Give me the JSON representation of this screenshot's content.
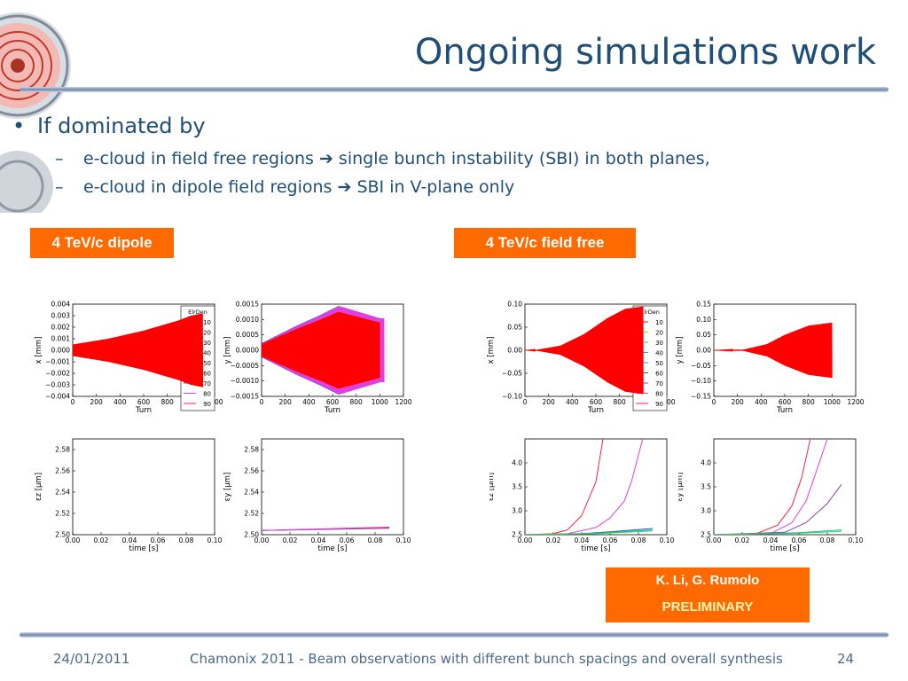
{
  "slide": {
    "title": "Ongoing simulations work",
    "bullet": "If dominated by",
    "sub_bullets": [
      {
        "before": "e-cloud in field free regions ",
        "after": " single bunch instability (SBI) in both planes,"
      },
      {
        "before": "e-cloud in dipole field regions ",
        "after": " SBI in V-plane only"
      }
    ],
    "tag_dipole": "4 TeV/c dipole",
    "tag_field_free": "4 TeV/c field free",
    "credit_authors": "K. Li, G. Rumolo",
    "credit_status": "PRELIMINARY",
    "footer_date": "24/01/2011",
    "footer_text": "Chamonix 2011 -  Beam observations with different bunch spacings and overall synthesis",
    "footer_page": "24",
    "colors": {
      "title": "#1f4e79",
      "accent": "#ff6a00"
    }
  },
  "legend": {
    "title": "ElrDen",
    "entries": [
      "10",
      "20",
      "30",
      "40",
      "50",
      "60",
      "70",
      "80",
      "90"
    ],
    "colors": [
      "#ff0000",
      "#b0d000",
      "#40d040",
      "#00c0c0",
      "#00a0ff",
      "#3050d0",
      "#8040c0",
      "#e040e0",
      "#ff2040"
    ]
  },
  "chart_data": [
    {
      "id": "dipole_x",
      "type": "line",
      "group": "4 TeV/c dipole",
      "xlabel": "Turn",
      "ylabel": "x [mm]",
      "xlim": [
        0,
        1200
      ],
      "ylim": [
        -0.004,
        0.004
      ],
      "xticks": [
        "0",
        "200",
        "400",
        "600",
        "800",
        "1000",
        "1200"
      ],
      "yticks": [
        "−0.004",
        "−0.003",
        "−0.002",
        "−0.001",
        "0.000",
        "0.001",
        "0.002",
        "0.003",
        "0.004"
      ],
      "legend": true,
      "envelope": {
        "x": [
          0,
          300,
          600,
          900,
          1000,
          1100
        ],
        "amp": [
          0.0005,
          0.001,
          0.0017,
          0.0026,
          0.003,
          0.0032
        ]
      }
    },
    {
      "id": "dipole_y",
      "type": "line",
      "group": "4 TeV/c dipole",
      "xlabel": "Turn",
      "ylabel": "y [mm]",
      "xlim": [
        0,
        1200
      ],
      "ylim": [
        -0.0015,
        0.0015
      ],
      "xticks": [
        "0",
        "200",
        "400",
        "600",
        "800",
        "1000",
        "1200"
      ],
      "yticks": [
        "−0.0015",
        "−0.0010",
        "−0.0005",
        "0.0000",
        "0.0005",
        "0.0010",
        "0.0015"
      ],
      "legend": false,
      "envelope": {
        "x": [
          0,
          150,
          300,
          500,
          650,
          800,
          1000
        ],
        "amp": [
          0.0002,
          0.00045,
          0.0007,
          0.001,
          0.00125,
          0.0011,
          0.0009
        ]
      }
    },
    {
      "id": "free_x",
      "type": "line",
      "group": "4 TeV/c field free",
      "xlabel": "Turn",
      "ylabel": "x [mm]",
      "xlim": [
        0,
        1200
      ],
      "ylim": [
        -0.1,
        0.1
      ],
      "xticks": [
        "0",
        "200",
        "400",
        "600",
        "800",
        "1000",
        "1200"
      ],
      "yticks": [
        "−0.10",
        "−0.05",
        "0.00",
        "0.05",
        "0.10"
      ],
      "legend": true,
      "envelope": {
        "x": [
          0,
          100,
          300,
          500,
          700,
          850,
          1000
        ],
        "amp": [
          0.0,
          0.001,
          0.01,
          0.035,
          0.07,
          0.09,
          0.095
        ]
      }
    },
    {
      "id": "free_y",
      "type": "line",
      "group": "4 TeV/c field free",
      "xlabel": "Turn",
      "ylabel": "y [mm]",
      "xlim": [
        0,
        1200
      ],
      "ylim": [
        -0.15,
        0.15
      ],
      "xticks": [
        "0",
        "200",
        "400",
        "600",
        "800",
        "1000",
        "1200"
      ],
      "yticks": [
        "−0.15",
        "−0.10",
        "−0.05",
        "0.00",
        "0.05",
        "0.10",
        "0.15"
      ],
      "legend": false,
      "envelope": {
        "x": [
          0,
          250,
          450,
          600,
          800,
          1000
        ],
        "amp": [
          0.0,
          0.002,
          0.02,
          0.05,
          0.08,
          0.09
        ]
      }
    },
    {
      "id": "dipole_ez",
      "type": "line",
      "group": "4 TeV/c dipole",
      "xlabel": "time [s]",
      "ylabel": "εz [μm]",
      "xlim": [
        0,
        0.1
      ],
      "ylim": [
        2.5,
        2.59
      ],
      "xticks": [
        "0.00",
        "0.02",
        "0.04",
        "0.06",
        "0.08",
        "0.10"
      ],
      "yticks": [
        "2.50",
        "2.52",
        "2.54",
        "2.56",
        "2.58"
      ],
      "series": []
    },
    {
      "id": "dipole_ey",
      "type": "line",
      "group": "4 TeV/c dipole",
      "xlabel": "time [s]",
      "ylabel": "εy [μm]",
      "xlim": [
        0,
        0.1
      ],
      "ylim": [
        2.5,
        2.59
      ],
      "xticks": [
        "0.00",
        "0.02",
        "0.04",
        "0.06",
        "0.08",
        "0.10"
      ],
      "yticks": [
        "2.50",
        "2.52",
        "2.54",
        "2.56",
        "2.58"
      ],
      "series": [
        {
          "color": "#ff0000",
          "x": [
            0,
            0.09
          ],
          "y": [
            2.504,
            2.507
          ]
        },
        {
          "color": "#3050d0",
          "x": [
            0,
            0.09
          ],
          "y": [
            2.504,
            2.506
          ]
        },
        {
          "color": "#e040e0",
          "x": [
            0,
            0.09
          ],
          "y": [
            2.504,
            2.5065
          ]
        }
      ]
    },
    {
      "id": "free_ez",
      "type": "line",
      "group": "4 TeV/c field free",
      "xlabel": "time [s]",
      "ylabel": "εz [μm]",
      "xlim": [
        0,
        0.1
      ],
      "ylim": [
        2.5,
        4.5
      ],
      "xticks": [
        "0.00",
        "0.02",
        "0.04",
        "0.06",
        "0.08",
        "0.10"
      ],
      "yticks": [
        "2.5",
        "3.0",
        "3.5",
        "4.0"
      ],
      "series": [
        {
          "color": "#ff2040",
          "x": [
            0,
            0.02,
            0.03,
            0.04,
            0.05,
            0.055
          ],
          "y": [
            2.5,
            2.52,
            2.6,
            2.9,
            3.6,
            4.5
          ]
        },
        {
          "color": "#e040e0",
          "x": [
            0,
            0.03,
            0.05,
            0.06,
            0.07,
            0.075,
            0.083
          ],
          "y": [
            2.5,
            2.52,
            2.65,
            2.85,
            3.2,
            3.6,
            4.5
          ]
        },
        {
          "color": "#3050d0",
          "x": [
            0,
            0.04,
            0.06,
            0.09
          ],
          "y": [
            2.5,
            2.52,
            2.56,
            2.63
          ]
        },
        {
          "color": "#00c0c0",
          "x": [
            0,
            0.05,
            0.09
          ],
          "y": [
            2.5,
            2.53,
            2.6
          ]
        },
        {
          "color": "#40d040",
          "x": [
            0,
            0.05,
            0.09
          ],
          "y": [
            2.5,
            2.52,
            2.58
          ]
        }
      ]
    },
    {
      "id": "free_ey",
      "type": "line",
      "group": "4 TeV/c field free",
      "xlabel": "time [s]",
      "ylabel": "εy [μm]",
      "xlim": [
        0,
        0.1
      ],
      "ylim": [
        2.5,
        4.5
      ],
      "xticks": [
        "0.00",
        "0.02",
        "0.04",
        "0.06",
        "0.08",
        "0.10"
      ],
      "yticks": [
        "2.5",
        "3.0",
        "3.5",
        "4.0"
      ],
      "series": [
        {
          "color": "#ff2040",
          "x": [
            0,
            0.03,
            0.045,
            0.055,
            0.062,
            0.068
          ],
          "y": [
            2.5,
            2.52,
            2.7,
            3.1,
            3.7,
            4.5
          ]
        },
        {
          "color": "#e040e0",
          "x": [
            0,
            0.04,
            0.055,
            0.065,
            0.072,
            0.08
          ],
          "y": [
            2.5,
            2.52,
            2.75,
            3.2,
            3.8,
            4.5
          ]
        },
        {
          "color": "#8040c0",
          "x": [
            0,
            0.05,
            0.065,
            0.08,
            0.09
          ],
          "y": [
            2.5,
            2.55,
            2.75,
            3.15,
            3.55
          ]
        },
        {
          "color": "#00c0c0",
          "x": [
            0,
            0.06,
            0.09
          ],
          "y": [
            2.5,
            2.54,
            2.6
          ]
        },
        {
          "color": "#40d040",
          "x": [
            0,
            0.06,
            0.09
          ],
          "y": [
            2.5,
            2.53,
            2.57
          ]
        }
      ]
    }
  ]
}
